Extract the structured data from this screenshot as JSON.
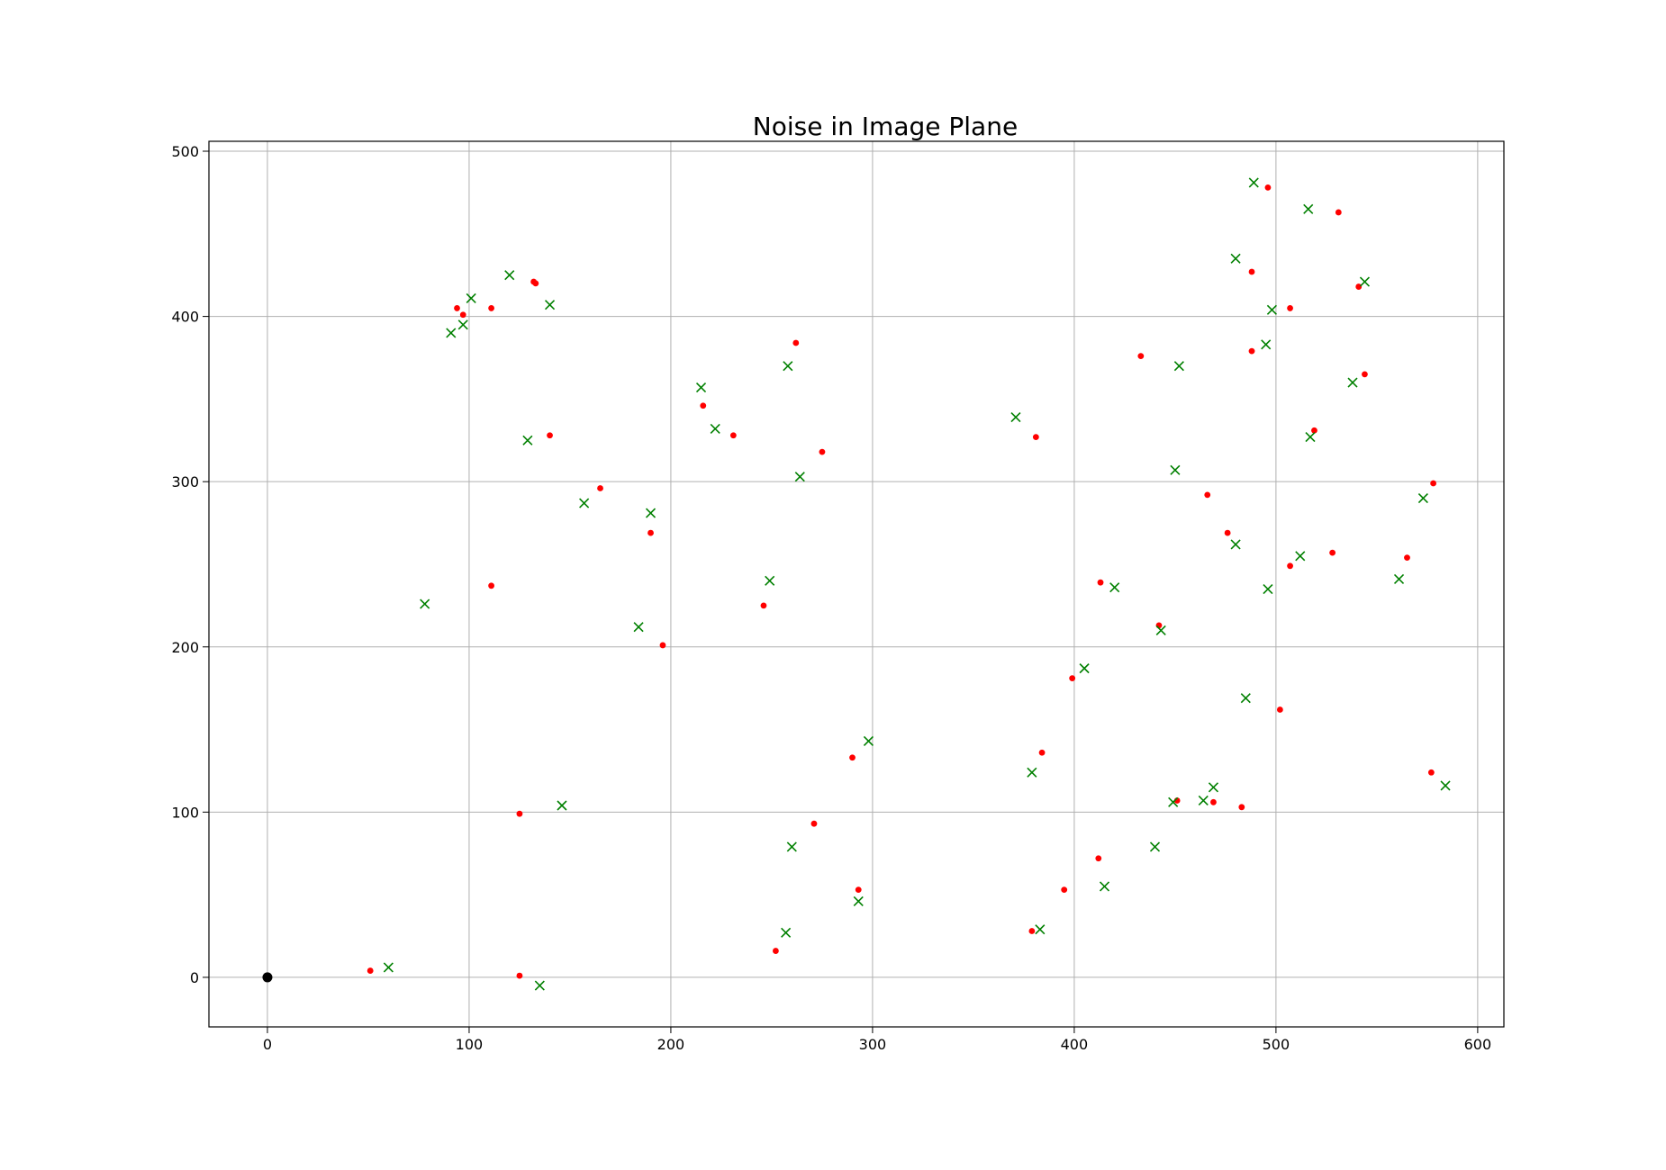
{
  "chart_data": {
    "type": "scatter",
    "title": "Noise in Image Plane",
    "xlabel": "",
    "ylabel": "",
    "xlim": [
      -29,
      613
    ],
    "ylim": [
      -30,
      506
    ],
    "xticks": [
      0,
      100,
      200,
      300,
      400,
      500,
      600
    ],
    "yticks": [
      0,
      100,
      200,
      300,
      400,
      500
    ],
    "grid": true,
    "legend": "none",
    "colors": {
      "dots": "#ff0000",
      "crosses": "#008000",
      "origin": "#000000",
      "grid": "#b0b0b0"
    },
    "series": [
      {
        "marker": "dot",
        "color": "#ff0000",
        "points": [
          [
            51,
            4
          ],
          [
            125,
            1
          ],
          [
            125,
            99
          ],
          [
            111,
            237
          ],
          [
            94,
            405
          ],
          [
            97,
            401
          ],
          [
            111,
            405
          ],
          [
            132,
            421
          ],
          [
            133,
            420
          ],
          [
            140,
            328
          ],
          [
            165,
            296
          ],
          [
            190,
            269
          ],
          [
            196,
            201
          ],
          [
            216,
            346
          ],
          [
            231,
            328
          ],
          [
            246,
            225
          ],
          [
            252,
            16
          ],
          [
            262,
            384
          ],
          [
            271,
            93
          ],
          [
            275,
            318
          ],
          [
            290,
            133
          ],
          [
            293,
            53
          ],
          [
            379,
            28
          ],
          [
            381,
            327
          ],
          [
            384,
            136
          ],
          [
            395,
            53
          ],
          [
            399,
            181
          ],
          [
            412,
            72
          ],
          [
            413,
            239
          ],
          [
            433,
            376
          ],
          [
            442,
            213
          ],
          [
            451,
            107
          ],
          [
            466,
            292
          ],
          [
            469,
            106
          ],
          [
            476,
            269
          ],
          [
            483,
            103
          ],
          [
            488,
            379
          ],
          [
            488,
            427
          ],
          [
            496,
            478
          ],
          [
            502,
            162
          ],
          [
            507,
            249
          ],
          [
            507,
            405
          ],
          [
            519,
            331
          ],
          [
            528,
            257
          ],
          [
            531,
            463
          ],
          [
            541,
            418
          ],
          [
            544,
            365
          ],
          [
            565,
            254
          ],
          [
            577,
            124
          ],
          [
            578,
            299
          ]
        ]
      },
      {
        "marker": "x",
        "color": "#008000",
        "points": [
          [
            60,
            6
          ],
          [
            78,
            226
          ],
          [
            91,
            390
          ],
          [
            97,
            395
          ],
          [
            101,
            411
          ],
          [
            120,
            425
          ],
          [
            129,
            325
          ],
          [
            135,
            -5
          ],
          [
            140,
            407
          ],
          [
            146,
            104
          ],
          [
            157,
            287
          ],
          [
            184,
            212
          ],
          [
            190,
            281
          ],
          [
            215,
            357
          ],
          [
            222,
            332
          ],
          [
            249,
            240
          ],
          [
            257,
            27
          ],
          [
            258,
            370
          ],
          [
            260,
            79
          ],
          [
            264,
            303
          ],
          [
            293,
            46
          ],
          [
            298,
            143
          ],
          [
            371,
            339
          ],
          [
            379,
            124
          ],
          [
            383,
            29
          ],
          [
            405,
            187
          ],
          [
            415,
            55
          ],
          [
            420,
            236
          ],
          [
            440,
            79
          ],
          [
            443,
            210
          ],
          [
            449,
            106
          ],
          [
            450,
            307
          ],
          [
            452,
            370
          ],
          [
            464,
            107
          ],
          [
            469,
            115
          ],
          [
            480,
            262
          ],
          [
            480,
            435
          ],
          [
            485,
            169
          ],
          [
            489,
            481
          ],
          [
            495,
            383
          ],
          [
            496,
            235
          ],
          [
            498,
            404
          ],
          [
            512,
            255
          ],
          [
            516,
            465
          ],
          [
            517,
            327
          ],
          [
            538,
            360
          ],
          [
            544,
            421
          ],
          [
            561,
            241
          ],
          [
            573,
            290
          ],
          [
            584,
            116
          ]
        ]
      },
      {
        "marker": "big-dot",
        "color": "#000000",
        "points": [
          [
            0,
            0
          ]
        ]
      }
    ]
  }
}
